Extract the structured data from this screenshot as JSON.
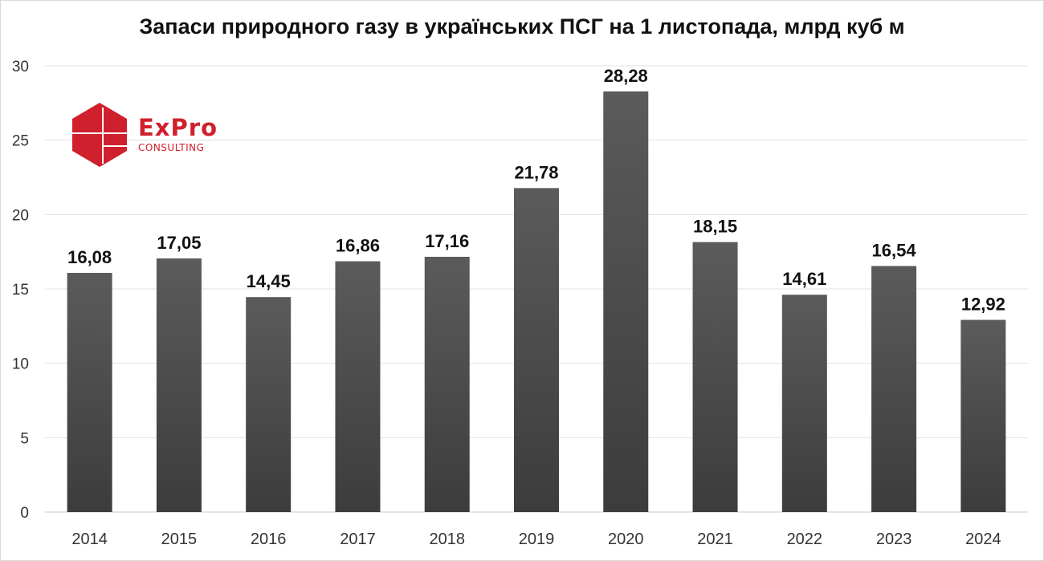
{
  "chart_data": {
    "type": "bar",
    "title": "Запаси природного газу в українських ПСГ на 1 листопада, млрд куб м",
    "categories": [
      "2014",
      "2015",
      "2016",
      "2017",
      "2018",
      "2019",
      "2020",
      "2021",
      "2022",
      "2023",
      "2024"
    ],
    "values": [
      16.08,
      17.05,
      14.45,
      16.86,
      17.16,
      21.78,
      28.28,
      18.15,
      14.61,
      16.54,
      12.92
    ],
    "value_labels": [
      "16,08",
      "17,05",
      "14,45",
      "16,86",
      "17,16",
      "21,78",
      "28,28",
      "18,15",
      "14,61",
      "16,54",
      "12,92"
    ],
    "ylim": [
      0,
      30
    ],
    "yticks": [
      0,
      5,
      10,
      15,
      20,
      25,
      30
    ],
    "grid": true,
    "bar_color": "#4a4a4a"
  },
  "logo": {
    "word": "ExPro",
    "sub": "CONSULTING",
    "color": "#d0202e"
  }
}
